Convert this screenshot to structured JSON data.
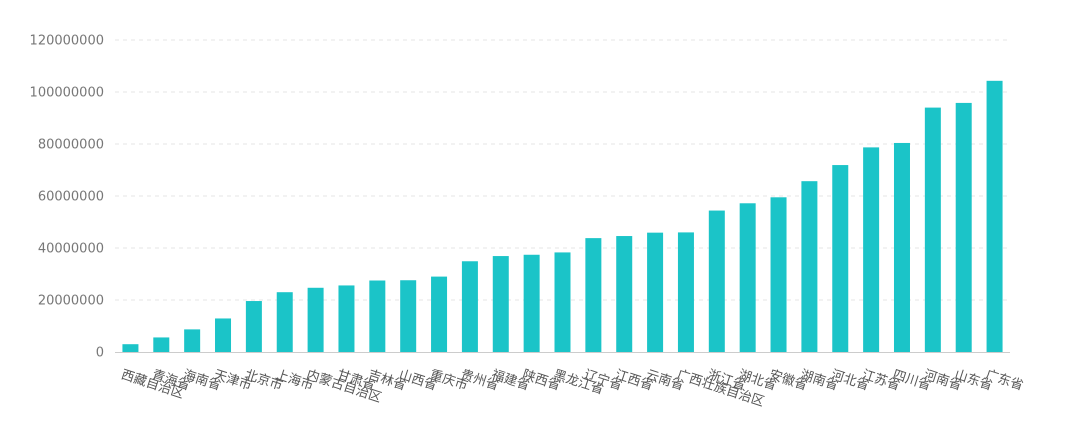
{
  "chart_data": {
    "type": "bar",
    "title": "",
    "xlabel": "",
    "ylabel": "",
    "ylim": [
      0,
      120000000
    ],
    "yticks": [
      0,
      20000000,
      40000000,
      60000000,
      80000000,
      100000000,
      120000000
    ],
    "ytick_labels": [
      "0",
      "20000000",
      "40000000",
      "60000000",
      "80000000",
      "100000000",
      "120000000"
    ],
    "grid": true,
    "bar_color": "#1bc4c8",
    "categories": [
      "西藏自治区",
      "青海省",
      "海南省",
      "天津市",
      "北京市",
      "上海市",
      "内蒙古自治区",
      "甘肃省",
      "吉林省",
      "山西省",
      "重庆市",
      "贵州省",
      "福建省",
      "陕西省",
      "黑龙江省",
      "辽宁省",
      "江西省",
      "云南省",
      "广西壮族自治区",
      "浙江省",
      "湖北省",
      "安徽省",
      "湖南省",
      "河北省",
      "江苏省",
      "四川省",
      "河南省",
      "山东省",
      "广东省"
    ],
    "values": [
      3000000,
      5600000,
      8700000,
      12900000,
      19600000,
      23000000,
      24700000,
      25600000,
      27500000,
      27600000,
      29000000,
      34900000,
      36900000,
      37400000,
      38300000,
      43800000,
      44600000,
      45900000,
      46000000,
      54400000,
      57200000,
      59500000,
      65700000,
      71900000,
      78700000,
      80400000,
      94000000,
      95800000,
      104300000
    ]
  }
}
